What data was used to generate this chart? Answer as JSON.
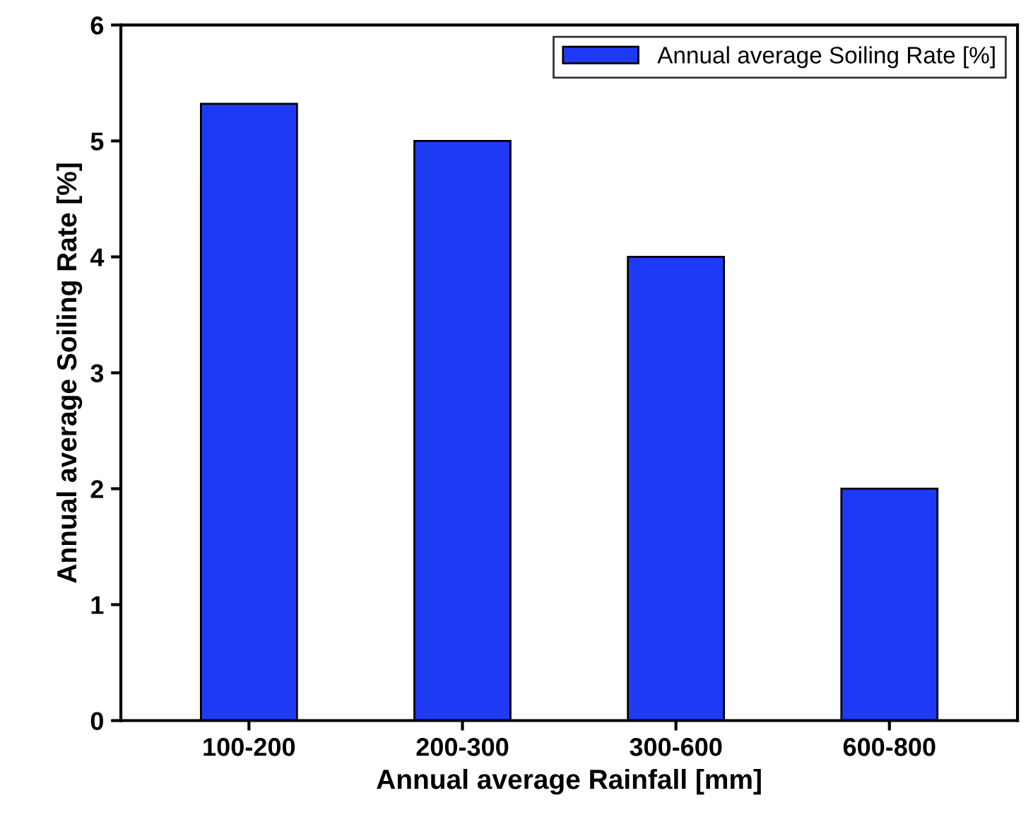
{
  "chart_data": {
    "type": "bar",
    "xlabel": "Annual average Rainfall [mm]",
    "ylabel": "Annual average Soiling Rate [%]",
    "categories": [
      "100-200",
      "200-300",
      "300-600",
      "600-800"
    ],
    "series": [
      {
        "name": "Annual average Soiling Rate [%]",
        "color": "#1f3af5",
        "values": [
          5.32,
          5.0,
          4.0,
          2.0
        ]
      }
    ],
    "ylim": [
      0,
      6
    ],
    "yticks": [
      0,
      1,
      2,
      3,
      4,
      5,
      6
    ],
    "grid": false,
    "legend": "top right"
  }
}
